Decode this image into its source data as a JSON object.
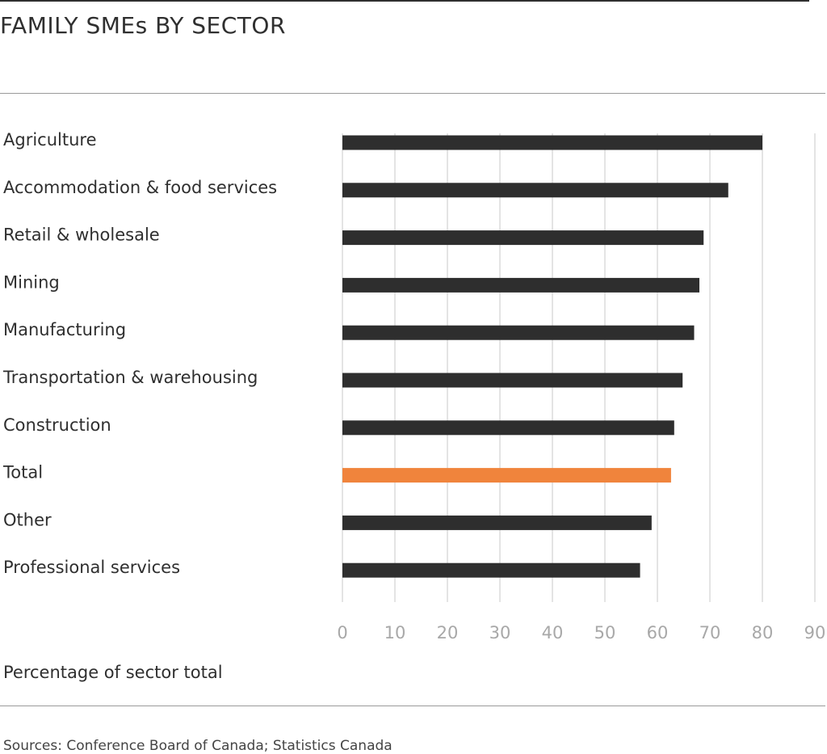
{
  "title": "FAMILY SMEs BY SECTOR",
  "source": "Sources: Conference Board of Canada; Statistics Canada",
  "colors": {
    "bar": "#2e2e2e",
    "highlight": "#f0843c",
    "grid": "#c8c8c8"
  },
  "chart_data": {
    "type": "bar",
    "orientation": "horizontal",
    "categories": [
      "Agriculture",
      "Accommodation & food services",
      "Retail & wholesale",
      "Mining",
      "Manufacturing",
      "Transportation & warehousing",
      "Construction",
      "Total",
      "Other",
      "Professional services"
    ],
    "values": [
      80,
      73.5,
      68.8,
      68,
      67,
      64.8,
      63.2,
      62.6,
      58.9,
      56.7
    ],
    "highlight": [
      "Total"
    ],
    "xlabel": "Percentage of sector total",
    "ylabel": "",
    "xlim": [
      0,
      90
    ],
    "xticks": [
      0,
      10,
      20,
      30,
      40,
      50,
      60,
      70,
      80,
      90
    ],
    "grid": "vertical"
  }
}
